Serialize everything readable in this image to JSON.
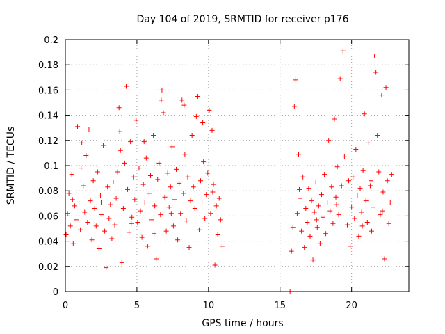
{
  "colors": {
    "marker": "#ff0000",
    "grid": "#a0a0a0",
    "axis": "#000000",
    "background": "#ffffff"
  },
  "chart_data": {
    "type": "scatter",
    "title": "Day 104 of 2019, SRMTID for receiver p176",
    "xlabel": "GPS time / hours",
    "ylabel": "SRMTID / TECUs",
    "xlim": [
      0,
      24
    ],
    "ylim": [
      0,
      0.2
    ],
    "xticks": [
      0,
      5,
      10,
      15,
      20
    ],
    "yticks": [
      0,
      0.02,
      0.04,
      0.06,
      0.08,
      0.1,
      0.12,
      0.14,
      0.16,
      0.18,
      0.2
    ],
    "xtick_labels": [
      "0",
      "5",
      "10",
      "15",
      "20"
    ],
    "ytick_labels": [
      "0",
      "0.02",
      "0.04",
      "0.06",
      "0.08",
      "0.1",
      "0.12",
      "0.14",
      "0.16",
      "0.18",
      "0.2"
    ],
    "grid": true,
    "marker": "+",
    "series": [
      {
        "name": "SRMTID",
        "points": [
          [
            0.05,
            0.045
          ],
          [
            0.15,
            0.062
          ],
          [
            0.25,
            0.078
          ],
          [
            0.35,
            0.052
          ],
          [
            0.45,
            0.093
          ],
          [
            0.55,
            0.038
          ],
          [
            0.65,
            0.068
          ],
          [
            0.75,
            0.057
          ],
          [
            0.85,
            0.131
          ],
          [
            0.95,
            0.071
          ],
          [
            1.05,
            0.049
          ],
          [
            1.15,
            0.118
          ],
          [
            1.25,
            0.084
          ],
          [
            1.35,
            0.063
          ],
          [
            1.45,
            0.108
          ],
          [
            1.55,
            0.055
          ],
          [
            1.65,
            0.129
          ],
          [
            1.75,
            0.072
          ],
          [
            1.85,
            0.041
          ],
          [
            1.95,
            0.088
          ],
          [
            2.05,
            0.066
          ],
          [
            2.15,
            0.052
          ],
          [
            2.25,
            0.095
          ],
          [
            2.35,
            0.034
          ],
          [
            2.45,
            0.076
          ],
          [
            2.55,
            0.061
          ],
          [
            2.65,
            0.116
          ],
          [
            2.75,
            0.048
          ],
          [
            2.85,
            0.019
          ],
          [
            2.95,
            0.083
          ],
          [
            3.05,
            0.058
          ],
          [
            3.15,
            0.069
          ],
          [
            3.25,
            0.042
          ],
          [
            3.35,
            0.087
          ],
          [
            3.45,
            0.053
          ],
          [
            3.55,
            0.074
          ],
          [
            3.65,
            0.095
          ],
          [
            3.75,
            0.146
          ],
          [
            3.85,
            0.112
          ],
          [
            3.95,
            0.023
          ],
          [
            4.05,
            0.066
          ],
          [
            4.15,
            0.102
          ],
          [
            4.25,
            0.163
          ],
          [
            4.35,
            0.081
          ],
          [
            4.45,
            0.047
          ],
          [
            4.55,
            0.119
          ],
          [
            4.65,
            0.059
          ],
          [
            4.75,
            0.091
          ],
          [
            4.85,
            0.073
          ],
          [
            4.95,
            0.136
          ],
          [
            5.05,
            0.055
          ],
          [
            5.15,
            0.098
          ],
          [
            5.25,
            0.064
          ],
          [
            5.35,
            0.043
          ],
          [
            5.45,
            0.085
          ],
          [
            5.55,
            0.071
          ],
          [
            5.65,
            0.106
          ],
          [
            5.75,
            0.036
          ],
          [
            5.85,
            0.078
          ],
          [
            5.95,
            0.092
          ],
          [
            6.05,
            0.057
          ],
          [
            6.15,
            0.124
          ],
          [
            6.25,
            0.068
          ],
          [
            6.35,
            0.026
          ],
          [
            6.45,
            0.089
          ],
          [
            6.55,
            0.102
          ],
          [
            6.65,
            0.061
          ],
          [
            6.75,
            0.16
          ],
          [
            6.85,
            0.142
          ],
          [
            6.95,
            0.075
          ],
          [
            7.05,
            0.048
          ],
          [
            7.15,
            0.094
          ],
          [
            7.25,
            0.067
          ],
          [
            7.35,
            0.083
          ],
          [
            7.45,
            0.115
          ],
          [
            7.55,
            0.052
          ],
          [
            7.65,
            0.073
          ],
          [
            7.75,
            0.097
          ],
          [
            7.85,
            0.041
          ],
          [
            7.95,
            0.086
          ],
          [
            8.05,
            0.062
          ],
          [
            8.15,
            0.152
          ],
          [
            8.25,
            0.078
          ],
          [
            8.35,
            0.109
          ],
          [
            8.45,
            0.056
          ],
          [
            8.55,
            0.091
          ],
          [
            8.65,
            0.035
          ],
          [
            8.75,
            0.072
          ],
          [
            8.85,
            0.124
          ],
          [
            8.95,
            0.083
          ],
          [
            9.05,
            0.066
          ],
          [
            9.15,
            0.139
          ],
          [
            9.25,
            0.155
          ],
          [
            9.35,
            0.049
          ],
          [
            9.45,
            0.088
          ],
          [
            9.55,
            0.071
          ],
          [
            9.65,
            0.103
          ],
          [
            9.75,
            0.058
          ],
          [
            9.85,
            0.077
          ],
          [
            9.95,
            0.094
          ],
          [
            10.05,
            0.144
          ],
          [
            10.15,
            0.062
          ],
          [
            10.25,
            0.128
          ],
          [
            10.35,
            0.085
          ],
          [
            10.45,
            0.021
          ],
          [
            10.55,
            0.068
          ],
          [
            10.65,
            0.045
          ],
          [
            10.75,
            0.074
          ],
          [
            10.85,
            0.057
          ],
          [
            10.95,
            0.036
          ],
          [
            15.7,
            0.0
          ],
          [
            15.8,
            0.032
          ],
          [
            15.9,
            0.051
          ],
          [
            16.0,
            0.147
          ],
          [
            16.1,
            0.168
          ],
          [
            16.2,
            0.062
          ],
          [
            16.3,
            0.109
          ],
          [
            16.4,
            0.074
          ],
          [
            16.5,
            0.048
          ],
          [
            16.6,
            0.091
          ],
          [
            16.7,
            0.035
          ],
          [
            16.8,
            0.066
          ],
          [
            16.9,
            0.055
          ],
          [
            17.0,
            0.082
          ],
          [
            17.1,
            0.044
          ],
          [
            17.2,
            0.072
          ],
          [
            17.3,
            0.025
          ],
          [
            17.4,
            0.063
          ],
          [
            17.5,
            0.087
          ],
          [
            17.6,
            0.051
          ],
          [
            17.7,
            0.068
          ],
          [
            17.8,
            0.038
          ],
          [
            17.9,
            0.077
          ],
          [
            18.0,
            0.059
          ],
          [
            18.1,
            0.093
          ],
          [
            18.2,
            0.046
          ],
          [
            18.3,
            0.071
          ],
          [
            18.4,
            0.12
          ],
          [
            18.5,
            0.064
          ],
          [
            18.6,
            0.083
          ],
          [
            18.7,
            0.054
          ],
          [
            18.8,
            0.137
          ],
          [
            18.9,
            0.075
          ],
          [
            19.0,
            0.099
          ],
          [
            19.1,
            0.061
          ],
          [
            19.2,
            0.169
          ],
          [
            19.3,
            0.084
          ],
          [
            19.4,
            0.191
          ],
          [
            19.5,
            0.107
          ],
          [
            19.6,
            0.071
          ],
          [
            19.7,
            0.053
          ],
          [
            19.8,
            0.088
          ],
          [
            19.9,
            0.036
          ],
          [
            20.0,
            0.067
          ],
          [
            20.1,
            0.091
          ],
          [
            20.2,
            0.058
          ],
          [
            20.3,
            0.113
          ],
          [
            20.4,
            0.076
          ],
          [
            20.5,
            0.044
          ],
          [
            20.6,
            0.082
          ],
          [
            20.7,
            0.063
          ],
          [
            20.8,
            0.096
          ],
          [
            20.9,
            0.141
          ],
          [
            21.0,
            0.072
          ],
          [
            21.1,
            0.055
          ],
          [
            21.2,
            0.118
          ],
          [
            21.3,
            0.084
          ],
          [
            21.4,
            0.048
          ],
          [
            21.5,
            0.067
          ],
          [
            21.6,
            0.187
          ],
          [
            21.7,
            0.174
          ],
          [
            21.8,
            0.124
          ],
          [
            21.9,
            0.095
          ],
          [
            22.0,
            0.061
          ],
          [
            22.1,
            0.156
          ],
          [
            22.2,
            0.079
          ],
          [
            22.3,
            0.026
          ],
          [
            22.4,
            0.162
          ],
          [
            22.5,
            0.088
          ],
          [
            22.6,
            0.054
          ],
          [
            22.7,
            0.071
          ],
          [
            22.8,
            0.093
          ],
          [
            16.35,
            0.081
          ],
          [
            17.55,
            0.057
          ],
          [
            18.95,
            0.069
          ],
          [
            20.75,
            0.052
          ],
          [
            21.35,
            0.088
          ],
          [
            22.15,
            0.064
          ],
          [
            2.5,
            0.071
          ],
          [
            6.7,
            0.152
          ],
          [
            8.3,
            0.148
          ],
          [
            9.6,
            0.134
          ],
          [
            3.8,
            0.127
          ],
          [
            5.5,
            0.119
          ],
          [
            1.1,
            0.098
          ],
          [
            0.5,
            0.073
          ],
          [
            7.4,
            0.062
          ],
          [
            10.3,
            0.079
          ],
          [
            4.6,
            0.054
          ],
          [
            6.2,
            0.046
          ]
        ]
      }
    ]
  }
}
